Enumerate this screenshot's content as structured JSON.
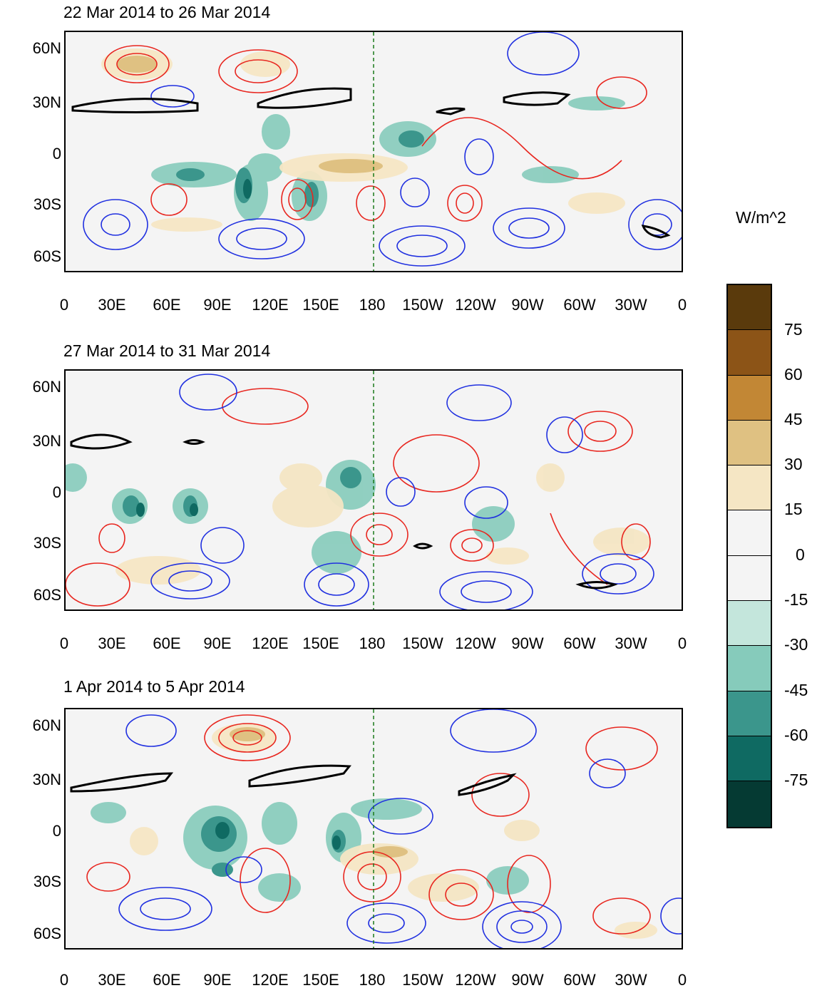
{
  "panels": [
    {
      "title": "22 Mar 2014 to 26 Mar 2014"
    },
    {
      "title": "27 Mar 2014 to 31 Mar 2014"
    },
    {
      "title": "1 Apr 2014 to 5 Apr 2014"
    }
  ],
  "lat_ticks": [
    "60N",
    "30N",
    "0",
    "30S",
    "60S"
  ],
  "lon_ticks": [
    "0",
    "30E",
    "60E",
    "90E",
    "120E",
    "150E",
    "180",
    "150W",
    "120W",
    "90W",
    "60W",
    "30W",
    "0"
  ],
  "colorbar": {
    "title": "W/m^2",
    "labels": [
      "75",
      "60",
      "45",
      "30",
      "15",
      "0",
      "-15",
      "-30",
      "-45",
      "-60",
      "-75"
    ],
    "colors": [
      "#5a3a0c",
      "#8c5417",
      "#c28735",
      "#dfc182",
      "#f5e6c4",
      "#f4f4f4",
      "#f4f4f4",
      "#c4e6dc",
      "#86cbbb",
      "#3b968c",
      "#0f6a62",
      "#053a33"
    ]
  },
  "colors": {
    "positive_contour": "#e8261f",
    "negative_contour": "#2030e0",
    "jet_contour": "#000000",
    "coast": "#1a7a1a"
  }
}
